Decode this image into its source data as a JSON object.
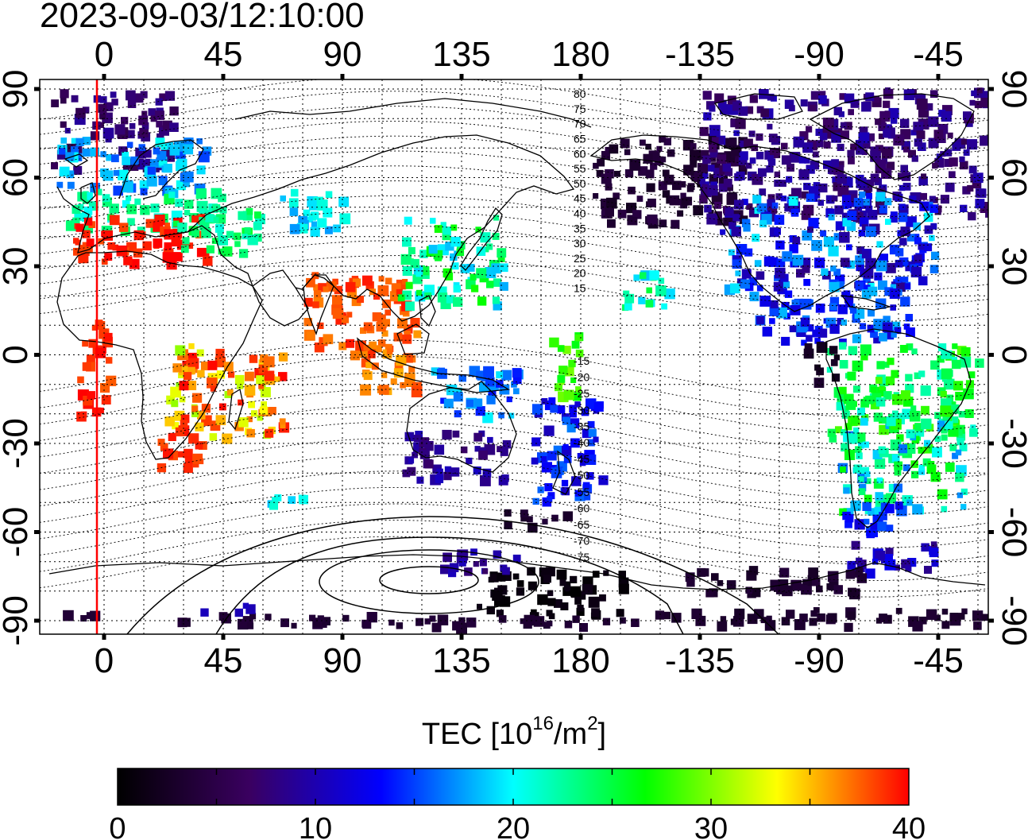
{
  "timestamp": "2023-09-03/12:10:00",
  "map": {
    "x_tick_labels": [
      "0",
      "45",
      "90",
      "135",
      "180",
      "-135",
      "-90",
      "-45"
    ],
    "y_tick_labels": [
      "90",
      "60",
      "30",
      "0",
      "-30",
      "-60",
      "-90"
    ],
    "magnetic_lat_labels_north": [
      "80",
      "75",
      "70",
      "65",
      "60",
      "55",
      "50",
      "45",
      "40",
      "35",
      "30",
      "25",
      "20",
      "15"
    ],
    "magnetic_lat_labels_south": [
      "-15",
      "-20",
      "-25",
      "-30",
      "-35",
      "-40",
      "-45",
      "-50",
      "-55",
      "-60",
      "-65",
      "-70",
      "-75"
    ],
    "marker_line_color": "#ff0000"
  },
  "colorbar": {
    "title_text": "TEC  [10",
    "title_exp": "16",
    "title_unit": "/m",
    "title_unit_exp": "2",
    "title_close": "]",
    "tick_labels": [
      "0",
      "10",
      "20",
      "30",
      "40"
    ],
    "colors": [
      "#000000",
      "#3a0060",
      "#0000ff",
      "#00ffff",
      "#00ff00",
      "#ffff00",
      "#ff0000"
    ]
  }
}
